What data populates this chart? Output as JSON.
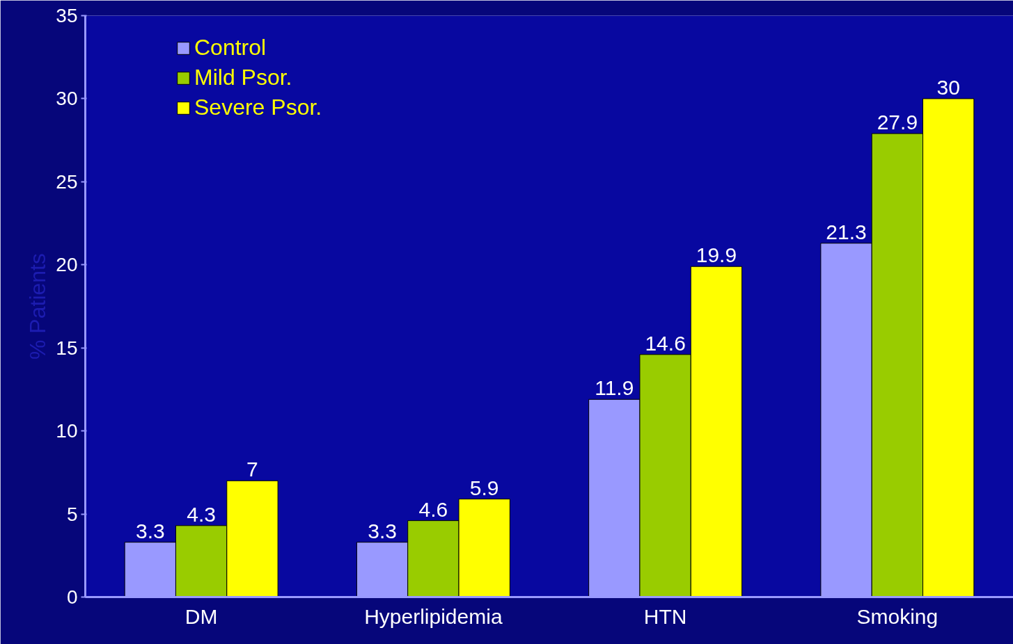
{
  "chart_data": {
    "type": "bar",
    "ylabel": "% Patients",
    "categories": [
      "DM",
      "Hyperlipidemia",
      "HTN",
      "Smoking"
    ],
    "series": [
      {
        "name": "Control",
        "color": "#9999ff",
        "values": [
          3.3,
          3.3,
          11.9,
          21.3
        ]
      },
      {
        "name": "Mild Psor.",
        "color": "#99cc00",
        "values": [
          4.3,
          4.6,
          14.6,
          27.9
        ]
      },
      {
        "name": "Severe Psor.",
        "color": "#ffff00",
        "values": [
          7,
          5.9,
          19.9,
          30
        ]
      }
    ],
    "ylim": [
      0,
      35
    ],
    "yticks": [
      0,
      5,
      10,
      15,
      20,
      25,
      30,
      35
    ],
    "grid": false,
    "legend": "top left",
    "data_labels": true
  }
}
